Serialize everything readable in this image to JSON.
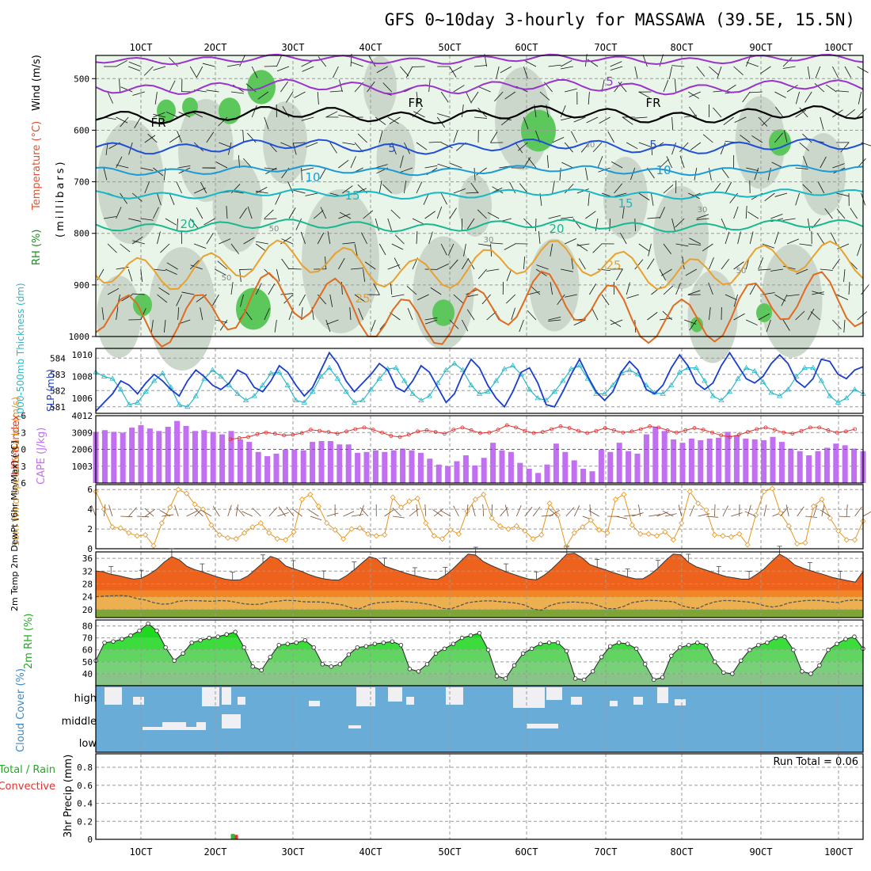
{
  "title": "GFS 0~10day 3-hourly for MASSAWA (39.5E, 15.5N)",
  "x_tick_labels": [
    "1OCT",
    "2OCT",
    "3OCT",
    "4OCT",
    "5OCT",
    "6OCT",
    "7OCT",
    "8OCT",
    "9OCT",
    "10OCT"
  ],
  "colors": {
    "rh_light": "#e8f5e8",
    "rh_mid": "#c8d4c8",
    "rh_green": "#5cc85c",
    "temp_purple": "#9933cc",
    "temp_black": "#000000",
    "temp_blue": "#1f4fd8",
    "temp_lightblue": "#1a9ad6",
    "temp_cyan": "#17b8c4",
    "temp_teal": "#17b890",
    "temp_orange": "#e8a030",
    "temp_dorange": "#e06a20",
    "temp_magenta": "#e0208c",
    "thickness": "#2ab8c8",
    "slp": "#1a3ecc",
    "lifted": "#e03030",
    "cape": "#c070f0",
    "wind10m": "#e8951e",
    "barb10m": "#7a4a2a",
    "rh2m": "#22cc22",
    "cloud_bg": "#6aacd8",
    "precip_total": "#2ebd2e",
    "precip_conv": "#e83030"
  },
  "upper_panel": {
    "ylabel_rh": "RH (%)",
    "ylabel_temp": "Temperature (°C)",
    "ylabel_wind": "Wind (m/s)",
    "ylabel_units": "(millibars)",
    "y_ticks": [
      "500",
      "600",
      "700",
      "800",
      "900",
      "1000"
    ],
    "contour_labels": [
      "5",
      "FR",
      "FR",
      "FR",
      "5",
      "5",
      "10",
      "10",
      "15",
      "15",
      "20",
      "20",
      "25",
      "25",
      "30",
      "30",
      "30",
      "50",
      "50",
      "50"
    ]
  },
  "chart_data": [
    {
      "panel": "thickness_slp",
      "type": "line",
      "ylabel_left": "1000-500mb Thickness (dm)",
      "ylabel_right": "SLP (mb)",
      "y_ticks_left": [
        "581",
        "582",
        "583",
        "584"
      ],
      "y_ticks_right": [
        "1006",
        "1008",
        "1010"
      ],
      "ylim_left": [
        580.6,
        584.6
      ],
      "ylim_right": [
        1004.6,
        1010.6
      ],
      "series": [
        {
          "values": [
            1008.4,
            1008.0,
            1007.8,
            1006.8,
            1005.4,
            1005.6,
            1006.6,
            1007.6,
            1008.3,
            1007.0,
            1005.4,
            1005.2,
            1006.2,
            1007.8,
            1008.6,
            1008.0,
            1007.2,
            1006.4,
            1005.8,
            1006.2,
            1007.2,
            1008.3,
            1008.4,
            1007.2,
            1005.8,
            1005.6,
            1006.6,
            1008.0,
            1008.8,
            1007.8,
            1006.6,
            1005.6,
            1005.8,
            1006.8,
            1007.8,
            1008.7,
            1008.8,
            1007.6,
            1006.4,
            1005.8,
            1006.2,
            1007.4,
            1008.6,
            1009.2,
            1008.6,
            1007.2,
            1006.4,
            1006.6,
            1007.6,
            1008.7,
            1009.0,
            1008.2,
            1006.8,
            1006.0,
            1005.8,
            1006.6,
            1007.6,
            1008.7,
            1009.0,
            1007.8,
            1006.4,
            1006.4,
            1007.2,
            1008.3,
            1008.6,
            1008.2,
            1007.2,
            1006.5,
            1006.4,
            1007.2,
            1008.4,
            1008.8,
            1008.8,
            1007.6,
            1006.2,
            1005.8,
            1006.6,
            1007.8,
            1008.8,
            1008.5,
            1007.5,
            1006.5,
            1006.2,
            1006.8,
            1008.0,
            1008.8,
            1008.8,
            1007.6,
            1006.2,
            1005.6,
            1006.0,
            1006.8,
            1006.4
          ]
        },
        {
          "values": [
            1004.8,
            1005.6,
            1006.4,
            1007.6,
            1007.2,
            1006.4,
            1007.4,
            1008.2,
            1007.6,
            1006.8,
            1006.2,
            1007.6,
            1008.6,
            1008.0,
            1007.2,
            1006.8,
            1007.4,
            1008.6,
            1008.2,
            1007.0,
            1006.6,
            1007.6,
            1009.0,
            1008.4,
            1007.2,
            1006.2,
            1007.0,
            1008.6,
            1010.2,
            1009.2,
            1007.6,
            1006.6,
            1007.4,
            1008.2,
            1009.2,
            1008.6,
            1007.0,
            1006.6,
            1007.6,
            1009.0,
            1008.4,
            1007.0,
            1005.6,
            1006.4,
            1008.2,
            1009.6,
            1008.8,
            1007.2,
            1006.0,
            1005.2,
            1006.6,
            1008.4,
            1008.8,
            1007.4,
            1005.4,
            1005.2,
            1006.6,
            1008.2,
            1009.6,
            1008.0,
            1006.6,
            1005.8,
            1006.6,
            1008.4,
            1009.4,
            1008.6,
            1006.8,
            1006.4,
            1007.2,
            1008.8,
            1010.0,
            1009.0,
            1007.4,
            1006.8,
            1007.4,
            1009.0,
            1010.2,
            1009.0,
            1007.8,
            1007.4,
            1008.0,
            1009.2,
            1010.0,
            1009.2,
            1007.6,
            1007.0,
            1007.8,
            1009.6,
            1009.4,
            1008.2,
            1007.8,
            1008.6,
            1008.9
          ]
        }
      ]
    },
    {
      "panel": "cape_lifted",
      "type": "bar",
      "ylabel_left": "Lifted Index",
      "ylabel_right": "CAPE (J/kg)",
      "y_ticks_left": [
        "-6",
        "-3",
        "0",
        "3",
        "6"
      ],
      "y_ticks_right": [
        "1003",
        "2006",
        "3009",
        "4012"
      ],
      "ylim": [
        0,
        4012
      ],
      "series": [
        {
          "values": [
            3050,
            3150,
            3050,
            3000,
            3300,
            3450,
            3250,
            3100,
            3350,
            3700,
            3400,
            3100,
            3150,
            3050,
            2900,
            3100,
            2600,
            2450,
            1850,
            1600,
            1750,
            2000,
            2000,
            1950,
            2450,
            2500,
            2500,
            2300,
            2300,
            1800,
            1850,
            1950,
            1850,
            1950,
            2050,
            1950,
            1800,
            1450,
            1100,
            1000,
            1300,
            1650,
            1050,
            1500,
            2400,
            1950,
            1850,
            1200,
            850,
            600,
            1100,
            2350,
            1850,
            1350,
            850,
            700,
            2000,
            1850,
            2400,
            1900,
            1750,
            2900,
            3350,
            3100,
            2600,
            2400,
            2650,
            2550,
            2650,
            2700,
            3050,
            2850,
            2650,
            2600,
            2550,
            2750,
            2450,
            2050,
            1900,
            1650,
            1900,
            2100,
            2350,
            2250,
            2050,
            1900
          ]
        },
        {
          "values": [
            -1.8,
            -2.0,
            -2.2,
            -2.7,
            -3.0,
            -2.8,
            -2.5,
            -2.6,
            -2.9,
            -3.5,
            -3.3,
            -3.1,
            -2.8,
            -3.2,
            -3.6,
            -3.9,
            -3.5,
            -3.0,
            -2.4,
            -2.2,
            -2.6,
            -3.2,
            -3.4,
            -3.1,
            -2.8,
            -3.5,
            -3.9,
            -3.4,
            -2.9,
            -3.0,
            -3.5,
            -4.3,
            -3.9,
            -3.3,
            -2.9,
            -3.1,
            -3.6,
            -4.1,
            -3.8,
            -3.3,
            -2.9,
            -3.3,
            -3.8,
            -3.4,
            -3.0,
            -3.2,
            -3.6,
            -4.1,
            -3.9,
            -3.4,
            -3.0,
            -3.4,
            -3.8,
            -3.5,
            -3.0,
            -2.5,
            -2.2,
            -2.6,
            -3.1,
            -3.6,
            -3.9,
            -3.5,
            -3.0,
            -2.8,
            -3.3,
            -3.9,
            -3.9,
            -3.4,
            -3.0,
            -3.2,
            -3.6,
            -3.9,
            -3.8,
            -3.5,
            -3.2,
            -3.1,
            -3.3,
            -3.6,
            -3.8,
            -3.6,
            -3.3,
            -3.0,
            -2.8,
            -3.0,
            -3.4,
            -3.3,
            -3.0
          ]
        }
      ]
    },
    {
      "panel": "wind10m",
      "type": "line",
      "ylabel": "10m Wind Speed & Barbs (m/s)",
      "y_ticks": [
        "0",
        "2",
        "4",
        "6"
      ],
      "ylim": [
        0,
        6.5
      ],
      "series": [
        {
          "values": [
            5.8,
            4.0,
            2.2,
            2.1,
            1.6,
            1.3,
            1.4,
            0.3,
            2.6,
            4.2,
            6.0,
            5.6,
            4.5,
            4.0,
            2.4,
            1.4,
            1.1,
            1.0,
            1.6,
            2.2,
            2.6,
            1.6,
            1.0,
            0.9,
            1.7,
            5.0,
            5.5,
            4.3,
            2.6,
            1.9,
            1.0,
            2.0,
            2.1,
            1.5,
            1.3,
            1.4,
            5.2,
            4.2,
            4.8,
            5.1,
            2.6,
            1.3,
            1.0,
            1.9,
            1.5,
            3.8,
            5.0,
            5.5,
            3.1,
            2.3,
            2.0,
            2.3,
            1.8,
            1.0,
            1.4,
            4.6,
            3.4,
            0.2,
            1.6,
            2.2,
            2.9,
            1.9,
            1.6,
            5.0,
            5.5,
            2.4,
            1.5,
            1.5,
            1.3,
            1.7,
            0.9,
            2.6,
            5.8,
            4.6,
            3.9,
            1.4,
            1.3,
            1.2,
            1.5,
            0.4,
            3.4,
            5.8,
            6.1,
            3.6,
            2.3,
            0.5,
            0.6,
            4.3,
            5.0,
            3.1,
            1.8,
            0.9,
            0.9,
            2.8
          ]
        }
      ]
    },
    {
      "panel": "temp2m",
      "type": "area",
      "ylabel": "2m Temp 2m DewPt (6hr Min/Max) (°C)",
      "y_ticks": [
        "20",
        "24",
        "28",
        "32",
        "36"
      ],
      "ylim": [
        17.5,
        38
      ],
      "series": [
        {
          "values": [
            32.0,
            31.8,
            31.0,
            30.6,
            30.0,
            29.5,
            29.8,
            31.0,
            32.6,
            34.8,
            36.5,
            35.5,
            33.5,
            32.5,
            31.8,
            31.0,
            30.2,
            29.5,
            29.2,
            29.3,
            30.5,
            32.5,
            34.6,
            36.6,
            35.8,
            33.6,
            32.8,
            32.0,
            31.0,
            30.2,
            29.6,
            29.3,
            29.2,
            30.6,
            32.4,
            34.5,
            36.5,
            35.8,
            33.6,
            32.8,
            32.0,
            31.2,
            30.6,
            30.0,
            29.5,
            29.4,
            30.7,
            32.7,
            35.0,
            37.3,
            37.0,
            35.0,
            33.8,
            32.8,
            31.8,
            31.0,
            30.2,
            29.5,
            29.3,
            30.7,
            32.6,
            34.9,
            37.3,
            37.6,
            36.2,
            34.1,
            33.2,
            32.5,
            31.6,
            30.9,
            30.2,
            29.6,
            29.6,
            31.0,
            32.9,
            35.3,
            37.3,
            37.1,
            34.8,
            33.4,
            32.6,
            31.8,
            31.0,
            30.3,
            29.9,
            29.5,
            29.5,
            31.0,
            32.8,
            35.1,
            37.3,
            36.0,
            33.9,
            33.0,
            32.2,
            31.5,
            30.8,
            30.0,
            29.5,
            29.0,
            28.6,
            31.9
          ]
        },
        {
          "values": [
            24.0,
            24.2,
            24.3,
            24.4,
            24.2,
            23.4,
            23.0,
            22.2,
            21.7,
            21.8,
            22.6,
            22.8,
            22.8,
            22.7,
            22.6,
            22.8,
            22.7,
            22.3,
            21.8,
            21.6,
            21.7,
            22.4,
            22.6,
            22.9,
            22.8,
            22.5,
            22.4,
            22.4,
            22.2,
            21.8,
            21.4,
            20.5,
            20.3,
            21.4,
            22.1,
            22.3,
            22.5,
            22.6,
            22.4,
            22.2,
            21.8,
            21.3,
            20.4,
            20.2,
            21.1,
            22.1,
            22.5,
            22.7,
            22.7,
            22.5,
            22.3,
            22.0,
            21.4,
            20.2,
            19.8,
            21.2,
            22.0,
            22.3,
            22.4,
            22.2,
            22.0,
            21.2,
            20.3,
            20.3,
            21.0,
            22.2,
            22.6,
            22.9,
            22.8,
            22.6,
            22.5,
            21.2,
            20.6,
            20.4,
            21.6,
            22.4,
            22.8,
            22.8,
            22.6,
            22.4,
            22.0,
            21.2,
            20.8,
            21.2,
            22.1,
            22.5,
            22.8,
            22.9,
            22.8,
            22.4,
            22.2,
            22.8,
            23.0,
            22.8
          ]
        }
      ]
    },
    {
      "panel": "rh2m",
      "type": "area",
      "ylabel": "2m RH (%)",
      "y_ticks": [
        "40",
        "50",
        "60",
        "70",
        "80"
      ],
      "ylim": [
        30,
        85
      ],
      "series": [
        {
          "values": [
            51,
            66,
            67,
            69,
            72,
            76,
            82,
            76,
            62,
            51,
            57,
            66,
            68,
            70,
            71,
            73,
            75,
            62,
            46,
            43,
            54,
            64,
            65,
            66,
            68,
            62,
            48,
            46,
            48,
            56,
            62,
            63,
            65,
            66,
            67,
            64,
            44,
            42,
            48,
            57,
            61,
            65,
            70,
            72,
            74,
            60,
            38,
            36,
            47,
            57,
            61,
            65,
            66,
            66,
            59,
            36,
            35,
            42,
            54,
            63,
            66,
            65,
            61,
            48,
            35,
            37,
            55,
            62,
            64,
            66,
            64,
            50,
            41,
            40,
            51,
            60,
            64,
            66,
            70,
            71,
            60,
            42,
            40,
            47,
            60,
            65,
            69,
            71,
            61
          ]
        }
      ]
    },
    {
      "panel": "cloud_cover",
      "type": "table",
      "ylabel": "Cloud Cover (%)",
      "levels": [
        "high",
        "middle",
        "low"
      ]
    },
    {
      "panel": "precip",
      "type": "bar",
      "ylabel": "3hr Precip (mm)",
      "ylabel_total": "Total / Rain",
      "ylabel_convective": "Convective",
      "y_ticks": [
        "0",
        "0.2",
        "0.4",
        "0.6",
        "0.8"
      ],
      "ylim": [
        0,
        0.95
      ],
      "run_total": "Run Total = 0.06",
      "series": [
        {
          "name": "Total / Rain",
          "values": [
            {
              "x": 2.25,
              "v": 0.06
            }
          ]
        },
        {
          "name": "Convective",
          "values": [
            {
              "x": 2.25,
              "v": 0.05
            }
          ]
        }
      ]
    }
  ]
}
